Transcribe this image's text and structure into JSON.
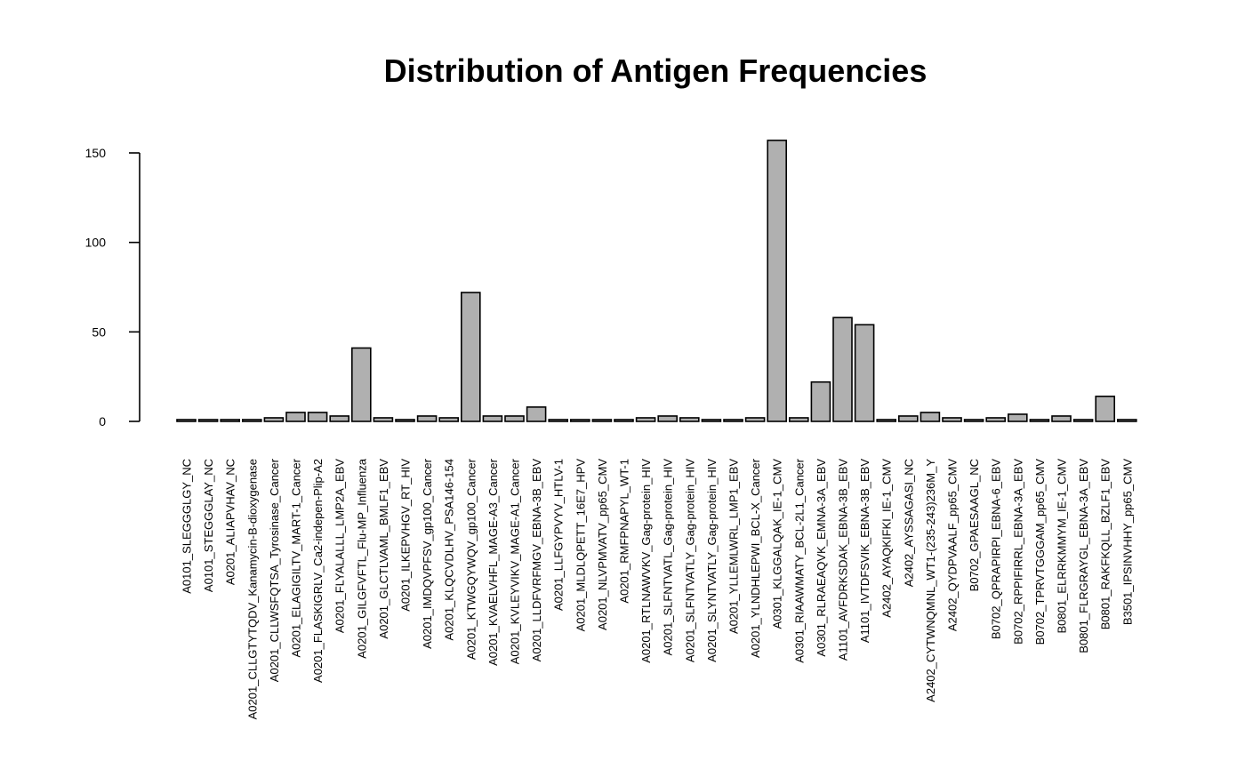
{
  "chart_data": {
    "type": "bar",
    "title": "Distribution of Antigen Frequencies",
    "xlabel": "",
    "ylabel": "",
    "ylim": [
      0,
      160
    ],
    "yticks": [
      0,
      50,
      100,
      150
    ],
    "grid": false,
    "bar_color": "#b0b0b0",
    "categories": [
      "A0101_SLEGGGLGY_NC",
      "A0101_STEGGGLAY_NC",
      "A0201_ALIAPVHAV_NC",
      "A0201_CLLGTYTQDV_Kanamycin-B-dioxygenase",
      "A0201_CLLWSFQTSA_Tyrosinase_Cancer",
      "A0201_ELAGIGILTV_MART-1_Cancer",
      "A0201_FLASKIGRLV_Ca2-indepen-Plip-A2",
      "A0201_FLYALALLL_LMP2A_EBV",
      "A0201_GILGFVFTL_Flu-MP_Influenza",
      "A0201_GLCTLVAML_BMLF1_EBV",
      "A0201_ILKEPVHGV_RT_HIV",
      "A0201_IMDQVPFSV_gp100_Cancer",
      "A0201_KLQCVDLHV_PSA146-154",
      "A0201_KTWGQYWQV_gp100_Cancer",
      "A0201_KVAELVHFL_MAGE-A3_Cancer",
      "A0201_KVLEYVIKV_MAGE-A1_Cancer",
      "A0201_LLDFVRFMGV_EBNA-3B_EBV",
      "A0201_LLFGYPVYV_HTLV-1",
      "A0201_MLDLQPETT_16E7_HPV",
      "A0201_NLVPMVATV_pp65_CMV",
      "A0201_RMFPNAPYL_WT-1",
      "A0201_RTLNAWVKV_Gag-protein_HIV",
      "A0201_SLFNTVATL_Gag-protein_HIV",
      "A0201_SLFNTVATLY_Gag-protein_HIV",
      "A0201_SLYNTVATLY_Gag-protein_HIV",
      "A0201_YLLEMLWRL_LMP1_EBV",
      "A0201_YLNDHLEPWI_BCL-X_Cancer",
      "A0301_KLGGALQAK_IE-1_CMV",
      "A0301_RIAAWMATY_BCL-2L1_Cancer",
      "A0301_RLRAEAQVK_EMNA-3A_EBV",
      "A1101_AVFDRKSDAK_EBNA-3B_EBV",
      "A1101_IVTDFSVIK_EBNA-3B_EBV",
      "A2402_AYAQKIFKI_IE-1_CMV",
      "A2402_AYSSAGASI_NC",
      "A2402_CYTWNQMNL_WT1-(235-243)236M_Y",
      "A2402_QYDPVAALF_pp65_CMV",
      "B0702_GPAESAAGL_NC",
      "B0702_QPRAPIRPI_EBNA-6_EBV",
      "B0702_RPPIFIRRL_EBNA-3A_EBV",
      "B0702_TPRVTGGGAM_pp65_CMV",
      "B0801_ELRRKMMYM_IE-1_CMV",
      "B0801_FLRGRAYGL_EBNA-3A_EBV",
      "B0801_RAKFKQLL_BZLF1_EBV",
      "B3501_IPSINVHHY_pp65_CMV"
    ],
    "values": [
      1,
      1,
      1,
      1,
      2,
      5,
      5,
      3,
      41,
      2,
      1,
      3,
      2,
      72,
      3,
      3,
      8,
      1,
      1,
      1,
      1,
      2,
      3,
      2,
      1,
      1,
      2,
      157,
      2,
      22,
      58,
      54,
      1,
      3,
      5,
      2,
      1,
      2,
      4,
      1,
      3,
      1,
      14,
      1
    ]
  }
}
